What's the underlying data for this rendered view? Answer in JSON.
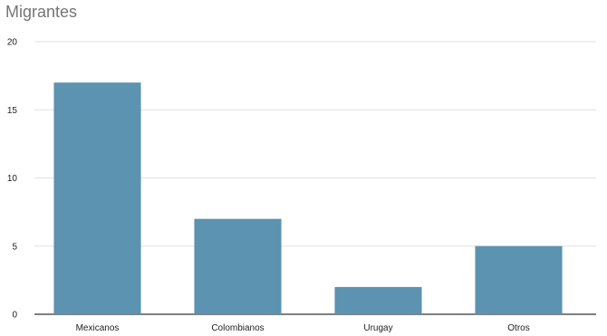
{
  "chart_data": {
    "type": "bar",
    "title": "Migrantes",
    "xlabel": "",
    "ylabel": "",
    "categories": [
      "Mexicanos",
      "Colombianos",
      "Urugay",
      "Otros"
    ],
    "series": [
      {
        "values": [
          17,
          7,
          2,
          5
        ]
      }
    ],
    "ylim": [
      0,
      20
    ],
    "yticks": [
      0,
      5,
      10,
      15,
      20
    ],
    "grid": true,
    "legend": "none",
    "colors": {
      "bar": "#5b93b0",
      "grid": "#e0e0e0",
      "axis": "#333333"
    }
  }
}
